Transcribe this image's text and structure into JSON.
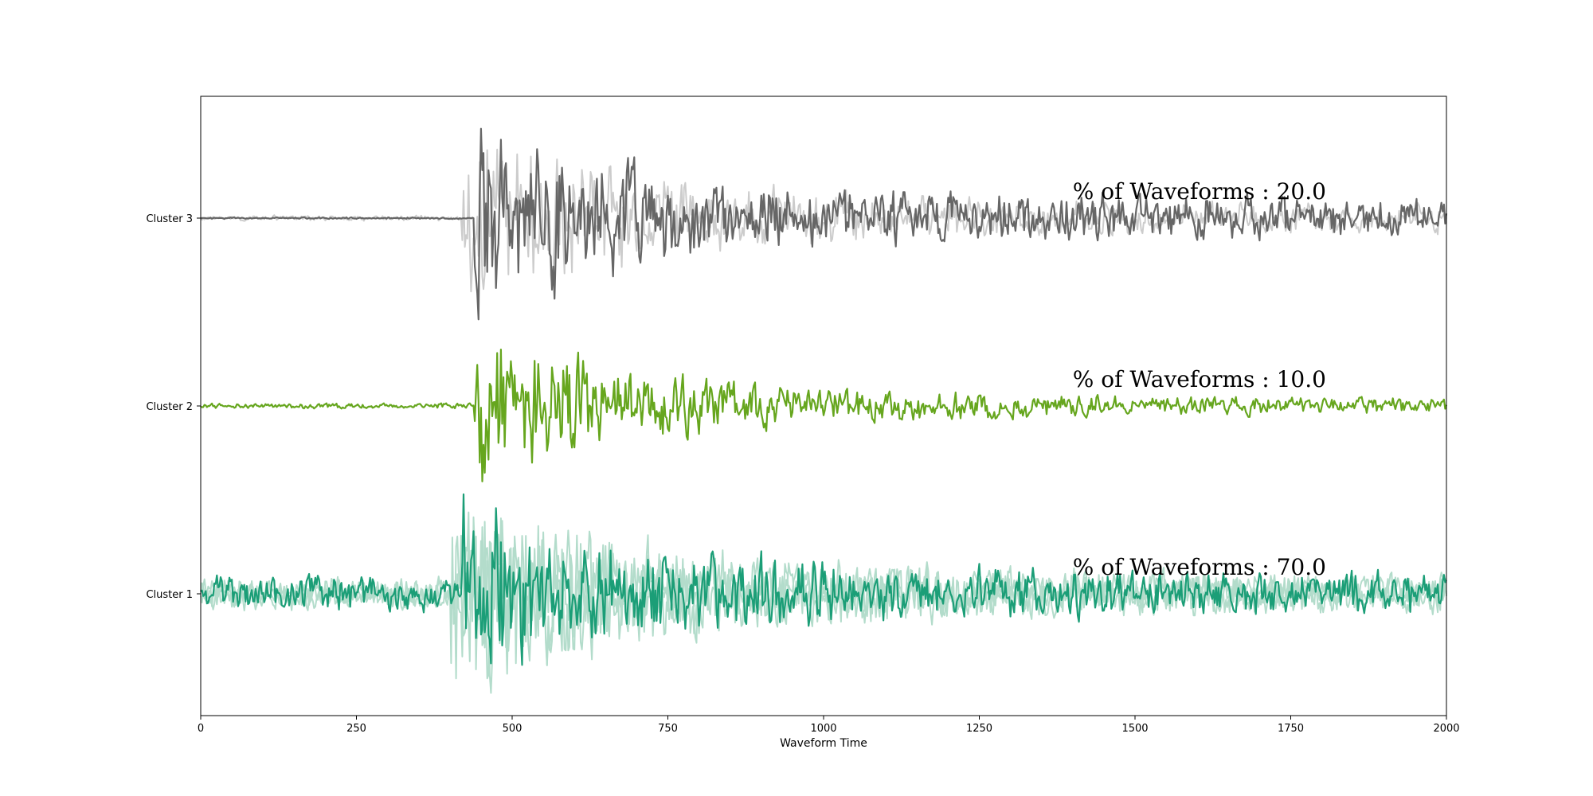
{
  "chart_data": {
    "type": "line",
    "title": "",
    "xlabel": "Waveform Time",
    "ylabel": "",
    "xlim": [
      0,
      2000
    ],
    "xticks": [
      "0",
      "250",
      "500",
      "750",
      "1000",
      "1250",
      "1500",
      "1750",
      "2000"
    ],
    "grid": false,
    "legend": "none",
    "clusters": [
      {
        "label": "Cluster 3",
        "percentage_text": "% of Waveforms : 20.0",
        "primary_color": "#666666",
        "member_color": "#cccccc",
        "member_count": 1,
        "onset": 440,
        "peak_amplitude": 0.9
      },
      {
        "label": "Cluster 2",
        "percentage_text": "% of Waveforms : 10.0",
        "primary_color": "#66a61e",
        "member_color": null,
        "member_count": 0,
        "onset": 440,
        "peak_amplitude": 0.8
      },
      {
        "label": "Cluster 1",
        "percentage_text": "% of Waveforms : 70.0",
        "primary_color": "#1b9e77",
        "member_color": "#b3dccb",
        "member_count": 3,
        "onset": 420,
        "peak_amplitude": 0.9
      }
    ]
  }
}
